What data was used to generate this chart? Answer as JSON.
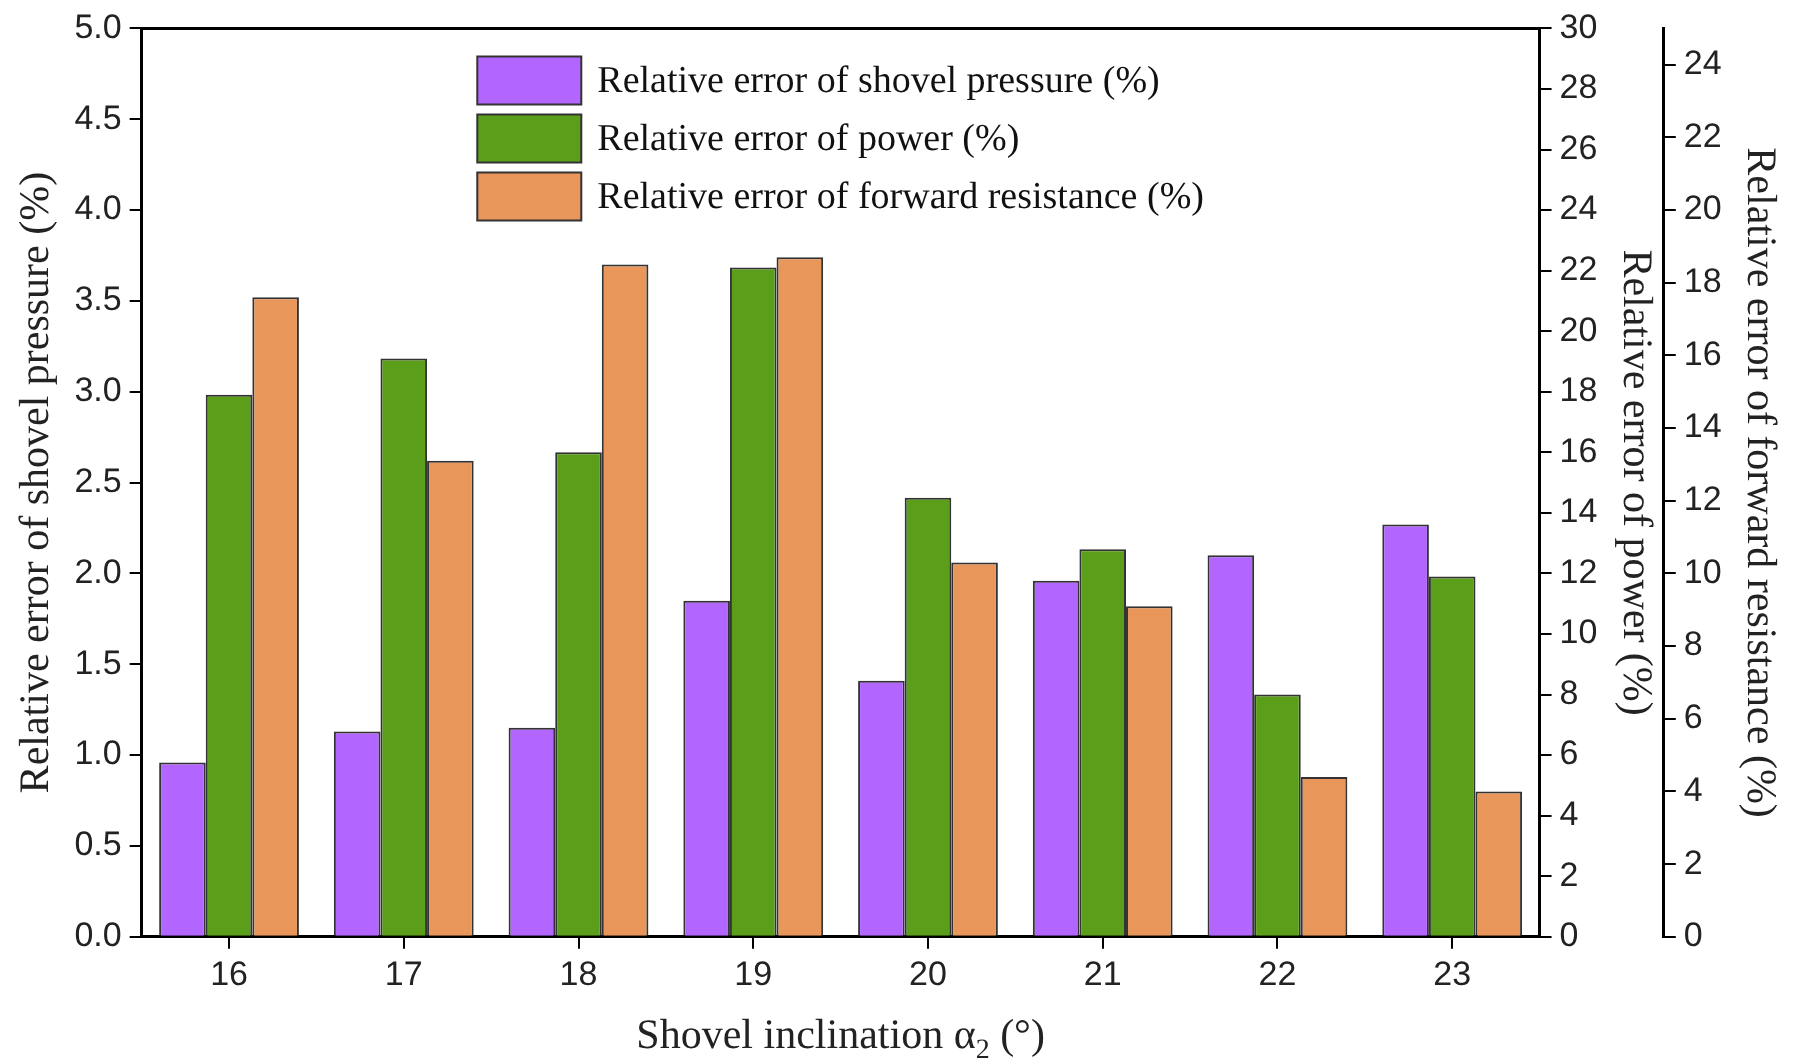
{
  "chart_data": {
    "type": "bar",
    "xlabel": "Shovel inclination α$_{2}$ (°)",
    "ylabel": "Relative error of shovel pressure (%)",
    "y2label": "Relative error of power (%)",
    "y3label": "Relative error of forward resistance (%)",
    "categories": [
      "16",
      "17",
      "18",
      "19",
      "20",
      "21",
      "22",
      "23"
    ],
    "series": [
      {
        "name": "Relative error of shovel pressure (%)",
        "color": "#b266ff",
        "values": [
          0.96,
          1.13,
          1.15,
          1.85,
          1.41,
          1.96,
          2.1,
          2.27
        ]
      },
      {
        "name": "Relative error of power (%)",
        "color": "#5a9e1a",
        "axis": "y2",
        "values": [
          17.9,
          19.1,
          16.0,
          22.1,
          14.5,
          12.8,
          8.0,
          11.9
        ]
      },
      {
        "name": "Relative error of forward resistance (%)",
        "color": "#e8965a",
        "axis": "y3",
        "values": [
          17.6,
          13.1,
          18.5,
          18.7,
          10.3,
          9.1,
          4.4,
          4.0
        ]
      }
    ],
    "ylim": [
      0,
      5
    ],
    "yticks": [
      {
        "value": 0,
        "label": "0.0"
      },
      {
        "value": 0.5,
        "label": "0.5"
      },
      {
        "value": 1,
        "label": "1.0"
      },
      {
        "value": 1.5,
        "label": "1.5"
      },
      {
        "value": 2,
        "label": "2.0"
      },
      {
        "value": 2.5,
        "label": "2.5"
      },
      {
        "value": 3,
        "label": "3.0"
      },
      {
        "value": 3.5,
        "label": "3.5"
      },
      {
        "value": 4,
        "label": "4.0"
      },
      {
        "value": 4.5,
        "label": "4.5"
      },
      {
        "value": 5,
        "label": "5.0"
      }
    ],
    "y2lim": [
      0,
      30
    ],
    "y2ticks": [
      0,
      2,
      4,
      6,
      8,
      10,
      12,
      14,
      16,
      18,
      20,
      22,
      24,
      26,
      28,
      30
    ],
    "y3lim": [
      0,
      25
    ],
    "y3ticks": [
      0,
      2,
      4,
      6,
      8,
      10,
      12,
      14,
      16,
      18,
      20,
      22,
      24
    ],
    "legend": "top",
    "grid": false
  }
}
